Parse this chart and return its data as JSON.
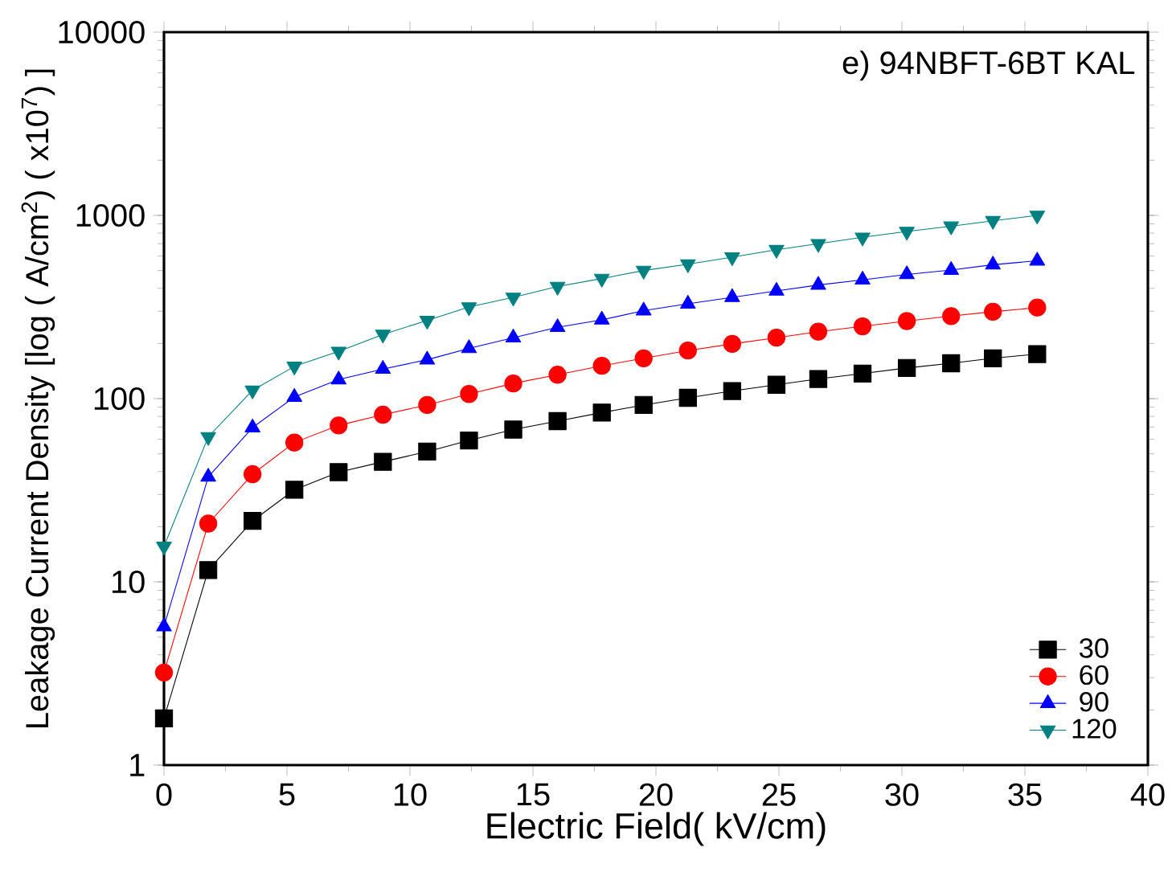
{
  "chart_data": {
    "type": "line",
    "xlabel": "Electric Field( kV/cm)",
    "ylabel": "Leakage Current Density [log ( A/cm$^{2}$) ( x10$^{7}$) ]",
    "annotations": [
      "e) 94NBFT-6BT KAL"
    ],
    "x": [
      0,
      1.8,
      3.6,
      5.3,
      7.1,
      8.9,
      10.7,
      12.4,
      14.2,
      16,
      17.8,
      19.5,
      21.3,
      23.1,
      24.9,
      26.6,
      28.4,
      30.2,
      32,
      33.7,
      35.5
    ],
    "series": [
      {
        "name": "30",
        "color": "#000000",
        "marker": "square",
        "values": [
          1.8,
          11.6,
          21.5,
          31.8,
          39.7,
          45.2,
          51.4,
          59.1,
          67.8,
          75.4,
          83.9,
          92.3,
          101,
          110,
          119,
          128,
          137,
          147,
          156,
          166,
          175
        ]
      },
      {
        "name": "60",
        "color": "#ff0000",
        "marker": "circle",
        "values": [
          3.2,
          20.8,
          38.7,
          57.6,
          71.4,
          81.7,
          92.3,
          106,
          121,
          135,
          151,
          166,
          183,
          199,
          215,
          232,
          248,
          265,
          282,
          298,
          314
        ]
      },
      {
        "name": "90",
        "color": "#0000ff",
        "marker": "triangle",
        "values": [
          5.7,
          37.4,
          69.5,
          102,
          127,
          145,
          163,
          188,
          215,
          245,
          269,
          302,
          329,
          357,
          387,
          417,
          445,
          476,
          503,
          538,
          565
        ]
      },
      {
        "name": "120",
        "color": "#008080",
        "marker": "triangle-down",
        "values": [
          15.6,
          61.9,
          111,
          150,
          181,
          224,
          267,
          316,
          357,
          409,
          452,
          500,
          542,
          592,
          650,
          700,
          759,
          817,
          873,
          935,
          1000
        ]
      }
    ],
    "xlim": [
      0,
      40
    ],
    "xticks": [
      0,
      5,
      10,
      15,
      20,
      25,
      30,
      35,
      40
    ],
    "ylim": [
      1,
      10000
    ],
    "yticks": [
      1,
      10,
      100,
      1000,
      10000
    ],
    "log": "y",
    "grid": false,
    "legend": "bottom right"
  }
}
